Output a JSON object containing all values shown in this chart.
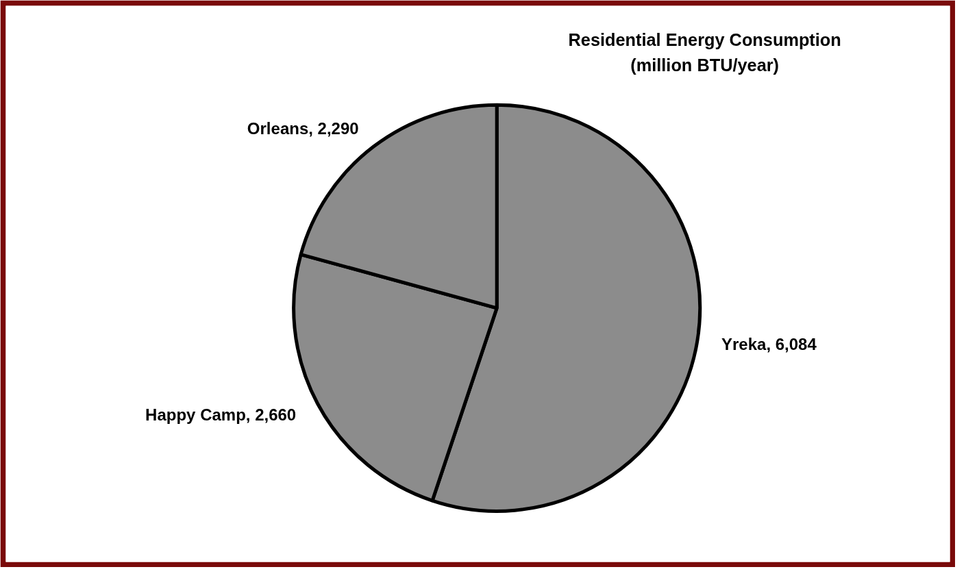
{
  "chart_data": {
    "type": "pie",
    "title": "Residential Energy Consumption\n(million BTU/year)",
    "categories": [
      "Yreka",
      "Happy Camp",
      "Orleans"
    ],
    "values": [
      6084,
      2660,
      2290
    ],
    "colors": [
      "#8c8c8c",
      "#8c8c8c",
      "#8c8c8c"
    ],
    "value_labels": [
      "6,084",
      "2,660",
      "2,290"
    ]
  }
}
